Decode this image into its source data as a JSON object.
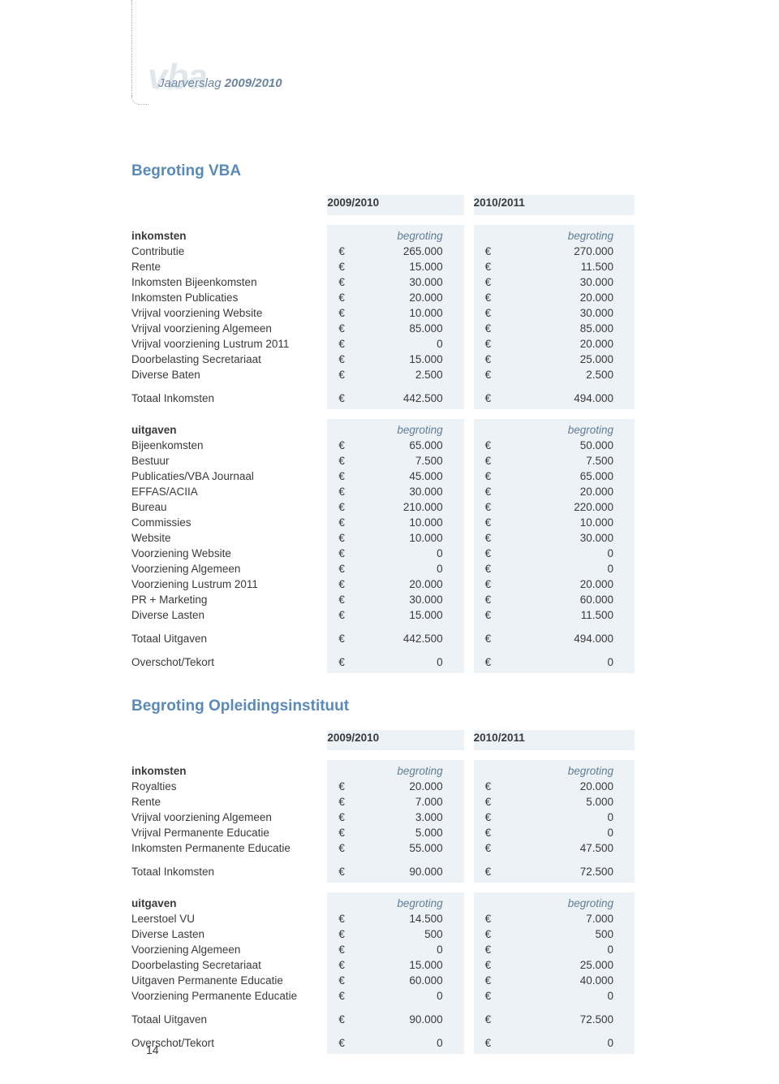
{
  "header": {
    "logo_text": "vba",
    "report_prefix": "Jaarverslag ",
    "report_year": "2009/2010"
  },
  "page_number": "14",
  "colors": {
    "heading": "#5a8bb8",
    "shade": "#edf2f6",
    "text": "#3a3a3a",
    "italic_header": "#607d96"
  },
  "currency": "€",
  "years": {
    "y1": "2009/2010",
    "y2": "2010/2011"
  },
  "budget_vba": {
    "title": "Begroting VBA",
    "inkomsten": {
      "section_label": "inkomsten",
      "sub_header": "begroting",
      "rows": [
        {
          "label": "Contributie",
          "v1": "265.000",
          "v2": "270.000"
        },
        {
          "label": "Rente",
          "v1": "15.000",
          "v2": "11.500"
        },
        {
          "label": "Inkomsten Bijeenkomsten",
          "v1": "30.000",
          "v2": "30.000"
        },
        {
          "label": "Inkomsten Publicaties",
          "v1": "20.000",
          "v2": "20.000"
        },
        {
          "label": "Vrijval voorziening Website",
          "v1": "10.000",
          "v2": "30.000"
        },
        {
          "label": "Vrijval voorziening Algemeen",
          "v1": "85.000",
          "v2": "85.000"
        },
        {
          "label": "Vrijval voorziening Lustrum 2011",
          "v1": "0",
          "v2": "20.000"
        },
        {
          "label": "Doorbelasting Secretariaat",
          "v1": "15.000",
          "v2": "25.000"
        },
        {
          "label": "Diverse Baten",
          "v1": "2.500",
          "v2": "2.500"
        }
      ],
      "total": {
        "label": "Totaal Inkomsten",
        "v1": "442.500",
        "v2": "494.000"
      }
    },
    "uitgaven": {
      "section_label": "uitgaven",
      "sub_header": "begroting",
      "rows": [
        {
          "label": "Bijeenkomsten",
          "v1": "65.000",
          "v2": "50.000"
        },
        {
          "label": "Bestuur",
          "v1": "7.500",
          "v2": "7.500"
        },
        {
          "label": "Publicaties/VBA Journaal",
          "v1": "45.000",
          "v2": "65.000"
        },
        {
          "label": "EFFAS/ACIIA",
          "v1": "30.000",
          "v2": "20.000"
        },
        {
          "label": "Bureau",
          "v1": "210.000",
          "v2": "220.000"
        },
        {
          "label": "Commissies",
          "v1": "10.000",
          "v2": "10.000"
        },
        {
          "label": "Website",
          "v1": "10.000",
          "v2": "30.000"
        },
        {
          "label": "Voorziening Website",
          "v1": "0",
          "v2": "0"
        },
        {
          "label": "Voorziening Algemeen",
          "v1": "0",
          "v2": "0"
        },
        {
          "label": "Voorziening Lustrum 2011",
          "v1": "20.000",
          "v2": "20.000"
        },
        {
          "label": "PR + Marketing",
          "v1": "30.000",
          "v2": "60.000"
        },
        {
          "label": "Diverse Lasten",
          "v1": "15.000",
          "v2": "11.500"
        }
      ],
      "total": {
        "label": "Totaal Uitgaven",
        "v1": "442.500",
        "v2": "494.000"
      },
      "balance": {
        "label": "Overschot/Tekort",
        "v1": "0",
        "v2": "0"
      }
    }
  },
  "budget_opl": {
    "title": "Begroting Opleidingsinstituut",
    "inkomsten": {
      "section_label": "inkomsten",
      "sub_header": "begroting",
      "rows": [
        {
          "label": "Royalties",
          "v1": "20.000",
          "v2": "20.000"
        },
        {
          "label": "Rente",
          "v1": "7.000",
          "v2": "5.000"
        },
        {
          "label": "Vrijval voorziening Algemeen",
          "v1": "3.000",
          "v2": "0"
        },
        {
          "label": "Vrijval Permanente Educatie",
          "v1": "5.000",
          "v2": "0"
        },
        {
          "label": "Inkomsten Permanente Educatie",
          "v1": "55.000",
          "v2": "47.500"
        }
      ],
      "total": {
        "label": "Totaal Inkomsten",
        "v1": "90.000",
        "v2": "72.500"
      }
    },
    "uitgaven": {
      "section_label": "uitgaven",
      "sub_header": "begroting",
      "rows": [
        {
          "label": "Leerstoel VU",
          "v1": "14.500",
          "v2": "7.000"
        },
        {
          "label": "Diverse Lasten",
          "v1": "500",
          "v2": "500"
        },
        {
          "label": "Voorziening Algemeen",
          "v1": "0",
          "v2": "0"
        },
        {
          "label": "Doorbelasting Secretariaat",
          "v1": "15.000",
          "v2": "25.000"
        },
        {
          "label": "Uitgaven Permanente Educatie",
          "v1": "60.000",
          "v2": "40.000"
        },
        {
          "label": "Voorziening Permanente Educatie",
          "v1": "0",
          "v2": "0"
        }
      ],
      "total": {
        "label": "Totaal Uitgaven",
        "v1": "90.000",
        "v2": "72.500"
      },
      "balance": {
        "label": "Overschot/Tekort",
        "v1": "0",
        "v2": "0"
      }
    }
  }
}
